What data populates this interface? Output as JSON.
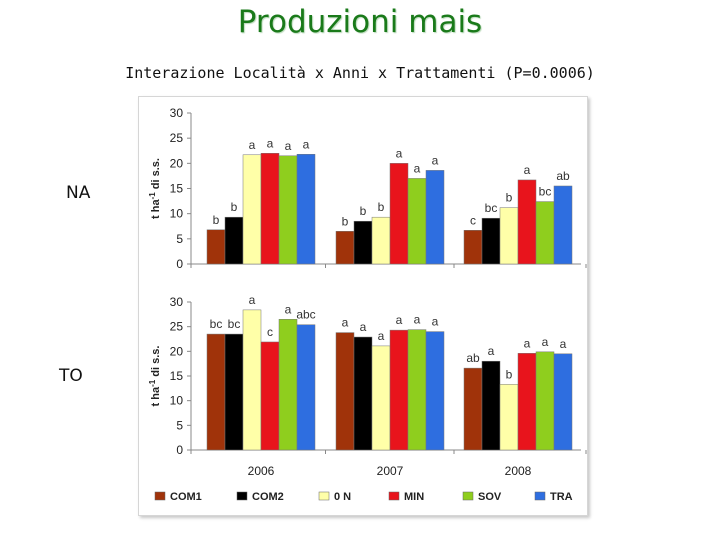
{
  "title": "Produzioni mais",
  "subtitle": "Interazione Località x Anni x Trattamenti (P=0.0006)",
  "locations": [
    "NA",
    "TO"
  ],
  "chart_data": {
    "type": "bar",
    "ylabel": "t ha-1 di s.s.",
    "ylim": [
      0,
      30
    ],
    "yticks": [
      0,
      5,
      10,
      15,
      20,
      25,
      30
    ],
    "categories": [
      "2006",
      "2007",
      "2008"
    ],
    "series_names": [
      "COM1",
      "COM2",
      "0 N",
      "MIN",
      "SOV",
      "TRA"
    ],
    "colors": [
      "#a0330a",
      "#000000",
      "#ffffa8",
      "#e8141c",
      "#8fce1e",
      "#2e6ee0"
    ],
    "legend_position": "bottom",
    "panels": [
      {
        "location": "NA",
        "series": [
          {
            "name": "COM1",
            "values": [
              6.8,
              6.5,
              6.7
            ]
          },
          {
            "name": "COM2",
            "values": [
              9.3,
              8.5,
              9.1
            ]
          },
          {
            "name": "0 N",
            "values": [
              21.7,
              9.3,
              11.2
            ]
          },
          {
            "name": "MIN",
            "values": [
              22.0,
              20.0,
              16.7
            ]
          },
          {
            "name": "SOV",
            "values": [
              21.5,
              17.0,
              12.4
            ]
          },
          {
            "name": "TRA",
            "values": [
              21.8,
              18.6,
              15.5
            ]
          }
        ],
        "letters": [
          [
            "b",
            "b",
            "a",
            "a",
            "a",
            "a"
          ],
          [
            "b",
            "b",
            "b",
            "a",
            "a",
            "a"
          ],
          [
            "c",
            "bc",
            "b",
            "a",
            "bc",
            "ab"
          ]
        ]
      },
      {
        "location": "TO",
        "series": [
          {
            "name": "COM1",
            "values": [
              23.5,
              23.8,
              16.6
            ]
          },
          {
            "name": "COM2",
            "values": [
              23.5,
              22.9,
              18.0
            ]
          },
          {
            "name": "0 N",
            "values": [
              28.4,
              21.1,
              13.3
            ]
          },
          {
            "name": "MIN",
            "values": [
              21.9,
              24.3,
              19.6
            ]
          },
          {
            "name": "SOV",
            "values": [
              26.5,
              24.4,
              19.9
            ]
          },
          {
            "name": "TRA",
            "values": [
              25.4,
              24.0,
              19.5
            ]
          }
        ],
        "letters": [
          [
            "bc",
            "bc",
            "a",
            "c",
            "a",
            "abc"
          ],
          [
            "a",
            "a",
            "a",
            "a",
            "a",
            "a"
          ],
          [
            "ab",
            "a",
            "b",
            "a",
            "a",
            "a"
          ]
        ]
      }
    ]
  }
}
